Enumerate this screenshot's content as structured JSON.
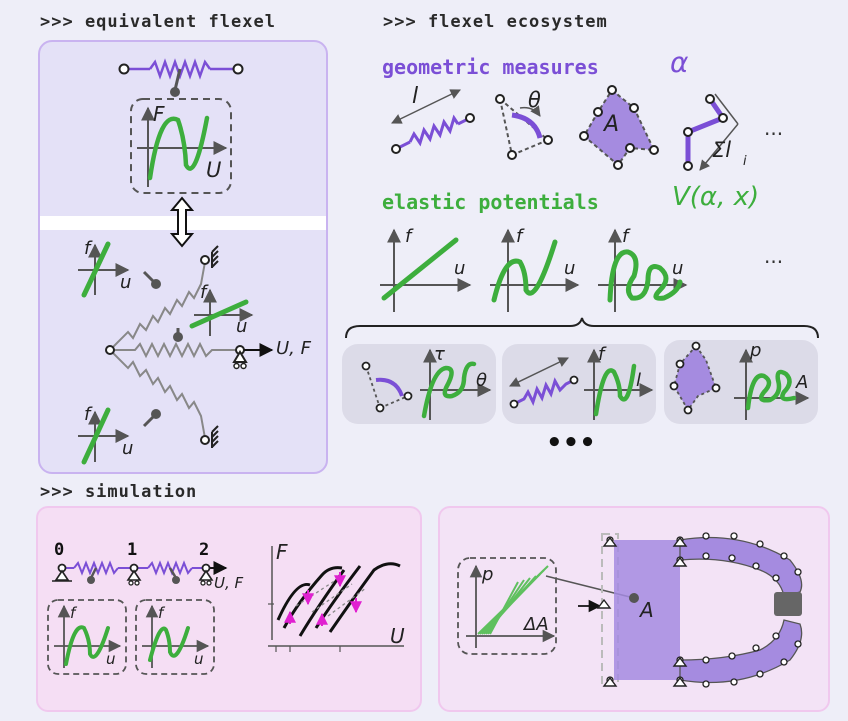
{
  "headers": {
    "equivalent": ">>> equivalent flexel",
    "ecosystem": ">>> flexel ecosystem",
    "simulation": ">>> simulation"
  },
  "ecosystem": {
    "geometric_label": "geometric measures",
    "geometric_symbol": "α",
    "elastic_label": "elastic potentials",
    "elastic_symbol": "V(α, x)",
    "measures": [
      "l",
      "θ",
      "A",
      "Σl",
      "i"
    ],
    "ellipsis": "...",
    "potential_axes": {
      "y": "f",
      "x": "u"
    },
    "combos": [
      {
        "y": "τ",
        "x": "θ"
      },
      {
        "y": "f",
        "x": "l"
      },
      {
        "y": "p",
        "x": "A"
      }
    ],
    "more": "•••"
  },
  "equivalent": {
    "top_axes": {
      "y": "F",
      "x": "U"
    },
    "small_axes": {
      "y": "f",
      "x": "u"
    },
    "load_label": "U, F"
  },
  "simulation": {
    "nodes": [
      "0",
      "1",
      "2"
    ],
    "load_label": "U, F",
    "sub_axes": {
      "y": "f",
      "x": "u"
    },
    "hysteresis_axes": {
      "y": "F",
      "x": "U"
    },
    "pressure_axes": {
      "y": "p",
      "x": "ΔA"
    },
    "area_label": "A"
  },
  "colors": {
    "purple": "#7b4fd6",
    "green": "#3dae3d",
    "panel_border": "#c9b3f0",
    "pink_panel": "#f5def4",
    "magenta": "#e020d0"
  }
}
